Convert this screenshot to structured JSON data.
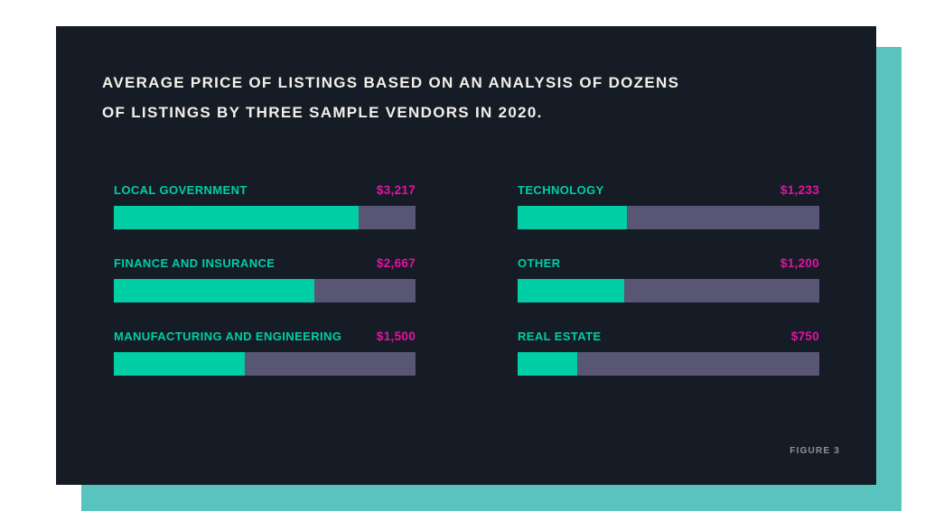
{
  "chart_data": {
    "type": "bar",
    "orientation": "horizontal",
    "title": "AVERAGE PRICE OF LISTINGS BASED ON AN ANALYSIS OF DOZENS OF LISTINGS BY THREE SAMPLE VENDORS IN 2020.",
    "title_line1": "AVERAGE PRICE OF LISTINGS BASED ON AN ANALYSIS OF DOZENS",
    "title_line2": "OF LISTINGS BY THREE SAMPLE VENDORS IN 2020.",
    "categories": [
      "LOCAL GOVERNMENT",
      "FINANCE AND INSURANCE",
      "MANUFACTURING AND ENGINEERING",
      "TECHNOLOGY",
      "OTHER",
      "REAL ESTATE"
    ],
    "values": [
      3217,
      2667,
      1500,
      1233,
      1200,
      750
    ],
    "value_labels": [
      "$3,217",
      "$2,667",
      "$1,500",
      "$1,233",
      "$1,200",
      "$750"
    ],
    "fill_pct": [
      81,
      66.5,
      43.5,
      36.3,
      35.4,
      19.8
    ],
    "layout": {
      "columns": "two columns: left = first 3 categories, right = last 3",
      "grid": "off",
      "axis_labels": "none (value printed at right of each category label)"
    },
    "figure_label": "FIGURE 3",
    "colors": {
      "bar_fill": "#00CEA5",
      "bar_track": "#585674",
      "category_label": "#00CEA5",
      "value_label": "#E313A3",
      "card_background": "#151C25",
      "backdrop": "#59C4BE",
      "title_text": "#F3F0EA",
      "figure_text": "#8C939C"
    }
  }
}
